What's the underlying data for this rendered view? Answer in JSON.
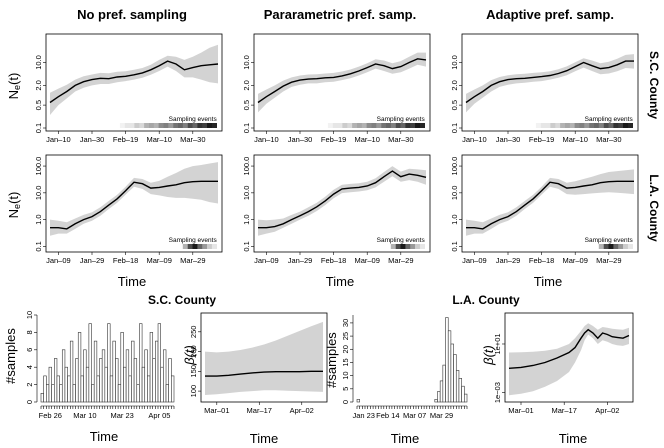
{
  "figure": {
    "column_titles": [
      "No pref. sampling",
      "Pararametric pref. samp.",
      "Adaptive pref. samp."
    ],
    "row_labels": [
      "S.C. County",
      "L.A. County"
    ],
    "ne_ylabel": "N_e(t)",
    "xlabel_time": "Time",
    "sampling_events_label": "Sampling events"
  },
  "chart_data": [
    {
      "id": "ne-sc-none",
      "type": "line",
      "row": 0,
      "col": 0,
      "title": "No pref. sampling",
      "xlabel": "",
      "ylabel": "Ne(t)",
      "yscale": "log",
      "ylim": [
        0.1,
        60
      ],
      "yticks": [
        0.1,
        0.5,
        2.0,
        10.0
      ],
      "ytick_labels": [
        "0.1",
        "0.5",
        "2.0",
        "10.0"
      ],
      "xlim": [
        0,
        100
      ],
      "xtick_pos": [
        5,
        25,
        45,
        65,
        85
      ],
      "xtick_labels": [
        "Jan–10",
        "Jan–30",
        "Feb–19",
        "Mar–10",
        "Mar–30"
      ],
      "x": [
        0,
        5,
        10,
        15,
        20,
        25,
        30,
        35,
        40,
        45,
        50,
        55,
        60,
        65,
        70,
        75,
        80,
        85,
        90,
        95,
        100
      ],
      "y": [
        0.6,
        0.9,
        1.3,
        2.0,
        2.6,
        3.0,
        3.3,
        3.2,
        3.6,
        3.8,
        4.2,
        4.8,
        6.0,
        8.0,
        11.0,
        9.0,
        6.0,
        7.0,
        8.0,
        8.5,
        9.0
      ],
      "lower": [
        0.25,
        0.5,
        0.8,
        1.3,
        1.7,
        2.0,
        2.2,
        2.2,
        2.5,
        2.7,
        3.0,
        3.4,
        4.2,
        5.5,
        7.5,
        5.5,
        3.5,
        3.5,
        3.0,
        2.5,
        2.3
      ],
      "upper": [
        1.2,
        1.6,
        2.1,
        3.0,
        3.8,
        4.3,
        4.8,
        4.7,
        5.2,
        5.4,
        6.0,
        6.8,
        8.5,
        12.0,
        16.0,
        15.0,
        12.0,
        15.0,
        20.0,
        28.0,
        35.0
      ],
      "sampling_intensity": [
        0.05,
        0.1,
        0.1,
        0.2,
        0.15,
        0.3,
        0.35,
        0.3,
        0.45,
        0.5,
        0.4,
        0.55,
        0.6,
        0.5,
        0.7,
        0.6,
        0.8,
        0.75,
        0.9,
        0.85
      ]
    },
    {
      "id": "ne-sc-param",
      "type": "line",
      "row": 0,
      "col": 1,
      "title": "Pararametric pref. samp.",
      "xlabel": "",
      "ylabel": "",
      "yscale": "log",
      "ylim": [
        0.1,
        60
      ],
      "yticks": [
        0.1,
        0.5,
        2.0,
        10.0
      ],
      "ytick_labels": [
        "0.1",
        "0.5",
        "2.0",
        "10.0"
      ],
      "xlim": [
        0,
        100
      ],
      "xtick_pos": [
        5,
        25,
        45,
        65,
        85
      ],
      "xtick_labels": [
        "Jan–10",
        "Jan–30",
        "Feb–19",
        "Mar–10",
        "Mar–30"
      ],
      "x": [
        0,
        5,
        10,
        15,
        20,
        25,
        30,
        35,
        40,
        45,
        50,
        55,
        60,
        65,
        70,
        75,
        80,
        85,
        90,
        95,
        100
      ],
      "y": [
        0.6,
        0.9,
        1.3,
        1.9,
        2.5,
        2.9,
        3.1,
        3.2,
        3.4,
        3.5,
        3.9,
        4.5,
        5.5,
        7.0,
        9.0,
        8.0,
        6.5,
        7.5,
        10.0,
        13.0,
        12.0
      ],
      "lower": [
        0.3,
        0.55,
        0.85,
        1.3,
        1.8,
        2.1,
        2.3,
        2.3,
        2.5,
        2.6,
        2.9,
        3.3,
        4.0,
        5.0,
        6.5,
        5.5,
        4.5,
        5.0,
        6.5,
        8.5,
        7.5
      ],
      "upper": [
        1.1,
        1.5,
        2.0,
        2.8,
        3.5,
        4.0,
        4.3,
        4.4,
        4.6,
        4.8,
        5.3,
        6.1,
        7.5,
        9.5,
        12.5,
        11.5,
        9.5,
        11.0,
        15.0,
        20.0,
        20.0
      ],
      "sampling_intensity": [
        0.05,
        0.1,
        0.1,
        0.2,
        0.15,
        0.3,
        0.35,
        0.3,
        0.45,
        0.5,
        0.4,
        0.55,
        0.6,
        0.5,
        0.7,
        0.6,
        0.8,
        0.75,
        0.9,
        0.85
      ]
    },
    {
      "id": "ne-sc-adapt",
      "type": "line",
      "row": 0,
      "col": 2,
      "title": "Adaptive pref. samp.",
      "xlabel": "",
      "ylabel": "",
      "yscale": "log",
      "ylim": [
        0.1,
        60
      ],
      "yticks": [
        0.1,
        0.5,
        2.0,
        10.0
      ],
      "ytick_labels": [
        "0.1",
        "0.5",
        "2.0",
        "10.0"
      ],
      "xlim": [
        0,
        100
      ],
      "xtick_pos": [
        5,
        25,
        45,
        65,
        85
      ],
      "xtick_labels": [
        "Jan–10",
        "Jan–30",
        "Feb–19",
        "Mar–10",
        "Mar–30"
      ],
      "x": [
        0,
        5,
        10,
        15,
        20,
        25,
        30,
        35,
        40,
        45,
        50,
        55,
        60,
        65,
        70,
        75,
        80,
        85,
        90,
        95,
        100
      ],
      "y": [
        0.6,
        0.9,
        1.3,
        2.0,
        2.6,
        3.0,
        3.2,
        3.3,
        3.5,
        3.7,
        4.0,
        4.6,
        5.6,
        7.5,
        10.0,
        8.0,
        6.5,
        7.0,
        8.5,
        11.0,
        11.0
      ],
      "lower": [
        0.3,
        0.55,
        0.85,
        1.3,
        1.8,
        2.1,
        2.3,
        2.4,
        2.6,
        2.7,
        3.0,
        3.4,
        4.1,
        5.4,
        7.0,
        5.5,
        4.4,
        4.6,
        5.4,
        6.8,
        6.5
      ],
      "upper": [
        1.1,
        1.5,
        2.0,
        2.9,
        3.6,
        4.1,
        4.4,
        4.5,
        4.8,
        5.0,
        5.4,
        6.2,
        7.6,
        10.2,
        13.5,
        11.5,
        9.5,
        10.5,
        13.0,
        17.0,
        18.0
      ],
      "sampling_intensity": [
        0.05,
        0.1,
        0.1,
        0.2,
        0.15,
        0.3,
        0.35,
        0.3,
        0.45,
        0.5,
        0.4,
        0.55,
        0.6,
        0.5,
        0.7,
        0.6,
        0.8,
        0.75,
        0.9,
        0.85
      ]
    },
    {
      "id": "ne-la-none",
      "type": "line",
      "row": 1,
      "col": 0,
      "title": "",
      "xlabel": "Time",
      "ylabel": "Ne(t)",
      "yscale": "log",
      "ylim": [
        0.08,
        200
      ],
      "yticks": [
        0.1,
        1.0,
        10.0,
        100.0
      ],
      "ytick_labels": [
        "0.1",
        "1.0",
        "10.0",
        "100.0"
      ],
      "xlim": [
        0,
        100
      ],
      "xtick_pos": [
        5,
        25,
        45,
        65,
        85
      ],
      "xtick_labels": [
        "Jan–09",
        "Jan–29",
        "Feb–18",
        "Mar–09",
        "Mar–29"
      ],
      "x": [
        0,
        5,
        10,
        15,
        20,
        25,
        30,
        35,
        40,
        45,
        50,
        55,
        60,
        65,
        70,
        75,
        80,
        85,
        90,
        95,
        100
      ],
      "y": [
        0.5,
        0.5,
        0.45,
        0.7,
        1.0,
        1.3,
        2.0,
        3.5,
        6.0,
        12.0,
        25.0,
        22.0,
        15.0,
        16.0,
        18.0,
        20.0,
        24.0,
        26.0,
        27.0,
        27.0,
        27.0
      ],
      "lower": [
        0.25,
        0.3,
        0.3,
        0.45,
        0.7,
        0.9,
        1.4,
        2.5,
        4.3,
        8.6,
        17.0,
        14.0,
        9.0,
        8.0,
        7.0,
        6.5,
        6.5,
        6.0,
        5.5,
        4.5,
        4.0
      ],
      "upper": [
        1.0,
        0.9,
        0.8,
        1.1,
        1.5,
        1.9,
        2.9,
        5.0,
        8.5,
        17.0,
        36.0,
        33.0,
        24.0,
        28.0,
        40.0,
        55.0,
        80.0,
        100.0,
        110.0,
        125.0,
        140.0
      ],
      "sampling_intensity": [
        0,
        0,
        0,
        0,
        0,
        0,
        0,
        0,
        0,
        0,
        0,
        0,
        0,
        0.3,
        0.7,
        0.9,
        0.6,
        0.4,
        0.2,
        0.1
      ]
    },
    {
      "id": "ne-la-param",
      "type": "line",
      "row": 1,
      "col": 1,
      "title": "",
      "xlabel": "Time",
      "ylabel": "",
      "yscale": "log",
      "ylim": [
        0.08,
        200
      ],
      "yticks": [
        0.1,
        1.0,
        10.0,
        100.0
      ],
      "ytick_labels": [
        "0.1",
        "1.0",
        "10.0",
        "100.0"
      ],
      "xlim": [
        0,
        100
      ],
      "xtick_pos": [
        5,
        25,
        45,
        65,
        85
      ],
      "xtick_labels": [
        "Jan–09",
        "Jan–29",
        "Feb–18",
        "Mar–09",
        "Mar–29"
      ],
      "x": [
        0,
        5,
        10,
        15,
        20,
        25,
        30,
        35,
        40,
        45,
        50,
        55,
        60,
        65,
        70,
        75,
        80,
        85,
        90,
        95,
        100
      ],
      "y": [
        0.5,
        0.5,
        0.55,
        0.7,
        1.0,
        1.4,
        2.0,
        3.0,
        5.0,
        9.0,
        14.0,
        15.0,
        16.0,
        18.0,
        24.0,
        40.0,
        65.0,
        40.0,
        50.0,
        45.0,
        38.0
      ],
      "lower": [
        0.25,
        0.3,
        0.35,
        0.5,
        0.7,
        1.0,
        1.4,
        2.1,
        3.5,
        6.3,
        9.8,
        10.5,
        11.2,
        12.5,
        16.0,
        26.0,
        42.0,
        26.0,
        30.0,
        26.0,
        20.0
      ],
      "upper": [
        1.0,
        0.95,
        1.0,
        1.1,
        1.5,
        2.0,
        2.9,
        4.3,
        7.2,
        13.0,
        20.0,
        21.5,
        23.0,
        26.0,
        35.0,
        60.0,
        100.0,
        62.0,
        80.0,
        75.0,
        70.0
      ],
      "sampling_intensity": [
        0,
        0,
        0,
        0,
        0,
        0,
        0,
        0,
        0,
        0,
        0,
        0,
        0,
        0.3,
        0.7,
        0.9,
        0.6,
        0.4,
        0.2,
        0.1
      ]
    },
    {
      "id": "ne-la-adapt",
      "type": "line",
      "row": 1,
      "col": 2,
      "title": "",
      "xlabel": "Time",
      "ylabel": "",
      "yscale": "log",
      "ylim": [
        0.08,
        200
      ],
      "yticks": [
        0.1,
        1.0,
        10.0,
        100.0
      ],
      "ytick_labels": [
        "0.1",
        "1.0",
        "10.0",
        "100.0"
      ],
      "xlim": [
        0,
        100
      ],
      "xtick_pos": [
        5,
        25,
        45,
        65,
        85
      ],
      "xtick_labels": [
        "Jan–09",
        "Jan–29",
        "Feb–18",
        "Mar–09",
        "Mar–29"
      ],
      "x": [
        0,
        5,
        10,
        15,
        20,
        25,
        30,
        35,
        40,
        45,
        50,
        55,
        60,
        65,
        70,
        75,
        80,
        85,
        90,
        95,
        100
      ],
      "y": [
        0.5,
        0.5,
        0.45,
        0.7,
        1.0,
        1.3,
        2.0,
        3.5,
        6.0,
        12.0,
        25.0,
        22.0,
        15.0,
        16.0,
        18.0,
        20.0,
        24.0,
        26.0,
        27.0,
        27.0,
        27.0
      ],
      "lower": [
        0.25,
        0.3,
        0.3,
        0.45,
        0.7,
        0.9,
        1.4,
        2.5,
        4.3,
        8.6,
        17.0,
        14.0,
        9.0,
        8.5,
        9.0,
        9.5,
        10.0,
        10.5,
        10.0,
        9.5,
        9.0
      ],
      "upper": [
        1.0,
        0.9,
        0.8,
        1.1,
        1.5,
        1.9,
        2.9,
        5.0,
        8.5,
        17.0,
        36.0,
        33.0,
        24.0,
        27.0,
        33.0,
        40.0,
        50.0,
        60.0,
        65.0,
        70.0,
        75.0
      ],
      "sampling_intensity": [
        0,
        0,
        0,
        0,
        0,
        0,
        0,
        0,
        0,
        0,
        0,
        0,
        0,
        0.3,
        0.7,
        0.9,
        0.6,
        0.4,
        0.2,
        0.1
      ]
    },
    {
      "id": "hist-sc",
      "type": "bar",
      "section": "S.C. County",
      "title": "S.C. County",
      "xlabel": "Time",
      "ylabel": "#samples",
      "ylim": [
        0,
        10
      ],
      "yticks": [
        0,
        2,
        4,
        6,
        8,
        10
      ],
      "ytick_labels": [
        "0",
        "2",
        "4",
        "6",
        "8",
        "10"
      ],
      "xtick_pos": [
        3,
        16,
        30,
        44
      ],
      "xtick_labels": [
        "Feb 26",
        "Mar 10",
        "Mar 23",
        "Apr 05"
      ],
      "values": [
        1,
        3,
        2,
        4,
        2,
        5,
        3,
        2,
        6,
        4,
        3,
        7,
        2,
        5,
        8,
        3,
        6,
        4,
        9,
        2,
        7,
        3,
        5,
        6,
        4,
        9,
        3,
        7,
        5,
        2,
        8,
        4,
        6,
        3,
        7,
        5,
        2,
        9,
        4,
        6,
        3,
        8,
        5,
        7,
        9,
        4,
        6,
        2,
        5,
        3
      ]
    },
    {
      "id": "beta-sc",
      "type": "line",
      "section": "S.C. County",
      "title": "",
      "xlabel": "Time",
      "ylabel": "β(t)",
      "yscale": "linear",
      "ylim": [
        80,
        290
      ],
      "yticks": [
        100,
        150,
        200,
        250
      ],
      "ytick_labels": [
        "100",
        "150",
        "200",
        "250"
      ],
      "xlim": [
        0,
        100
      ],
      "xtick_pos": [
        10,
        46,
        82
      ],
      "xtick_labels": [
        "Mar–01",
        "Mar–17",
        "Apr–02"
      ],
      "x": [
        0,
        10,
        20,
        30,
        40,
        50,
        60,
        70,
        80,
        90,
        100
      ],
      "y": [
        138,
        138,
        140,
        143,
        146,
        148,
        149,
        149,
        149,
        150,
        150
      ],
      "lower": [
        90,
        92,
        95,
        98,
        100,
        102,
        102,
        101,
        100,
        99,
        98
      ],
      "upper": [
        200,
        198,
        200,
        204,
        210,
        218,
        228,
        240,
        252,
        264,
        275
      ]
    },
    {
      "id": "hist-la",
      "type": "bar",
      "section": "L.A. County",
      "title": "L.A. County",
      "xlabel": "Time",
      "ylabel": "#samples",
      "ylim": [
        0,
        33
      ],
      "yticks": [
        0,
        5,
        10,
        15,
        20,
        25,
        30
      ],
      "ytick_labels": [
        "0",
        "5",
        "10",
        "15",
        "20",
        "25",
        "30"
      ],
      "xtick_pos": [
        2,
        11,
        21,
        31,
        41
      ],
      "xtick_labels": [
        "Jan 23",
        "Feb 14",
        "Mar 07",
        "Mar 29",
        ""
      ],
      "values": [
        1,
        0,
        0,
        0,
        0,
        0,
        0,
        0,
        0,
        0,
        0,
        0,
        0,
        0,
        0,
        0,
        0,
        0,
        0,
        0,
        0,
        0,
        0,
        0,
        0,
        0,
        0,
        0,
        0,
        1,
        4,
        8,
        14,
        32,
        27,
        22,
        18,
        12,
        9,
        6,
        3
      ]
    },
    {
      "id": "beta-la",
      "type": "line",
      "section": "L.A. County",
      "title": "",
      "xlabel": "Time",
      "ylabel": "β(t)",
      "yscale": "log",
      "ylim": [
        0.0003,
        2000
      ],
      "yticks": [
        0.001,
        10
      ],
      "ytick_labels": [
        "1e−03",
        "1e+01"
      ],
      "xlim": [
        0,
        100
      ],
      "xtick_pos": [
        10,
        46,
        82
      ],
      "xtick_labels": [
        "Mar–01",
        "Mar–17",
        "Apr–02"
      ],
      "x": [
        0,
        10,
        20,
        30,
        40,
        50,
        55,
        60,
        63,
        66,
        70,
        74,
        78,
        82,
        86,
        90,
        95,
        100
      ],
      "y": [
        0.1,
        0.12,
        0.17,
        0.3,
        0.7,
        2.0,
        5.0,
        30.0,
        80.0,
        150.0,
        80.0,
        30.0,
        80.0,
        60.0,
        40.0,
        35.0,
        30.0,
        50.0
      ],
      "lower": [
        0.0006,
        0.0008,
        0.0013,
        0.003,
        0.009,
        0.05,
        0.3,
        3.0,
        20.0,
        60.0,
        30.0,
        10.0,
        20.0,
        15.0,
        10.0,
        8.0,
        7.0,
        10.0
      ],
      "upper": [
        2.0,
        2.1,
        2.3,
        2.8,
        4.0,
        10.0,
        30.0,
        120.0,
        300.0,
        500.0,
        300.0,
        150.0,
        250.0,
        220.0,
        180.0,
        160.0,
        150.0,
        220.0
      ]
    }
  ]
}
